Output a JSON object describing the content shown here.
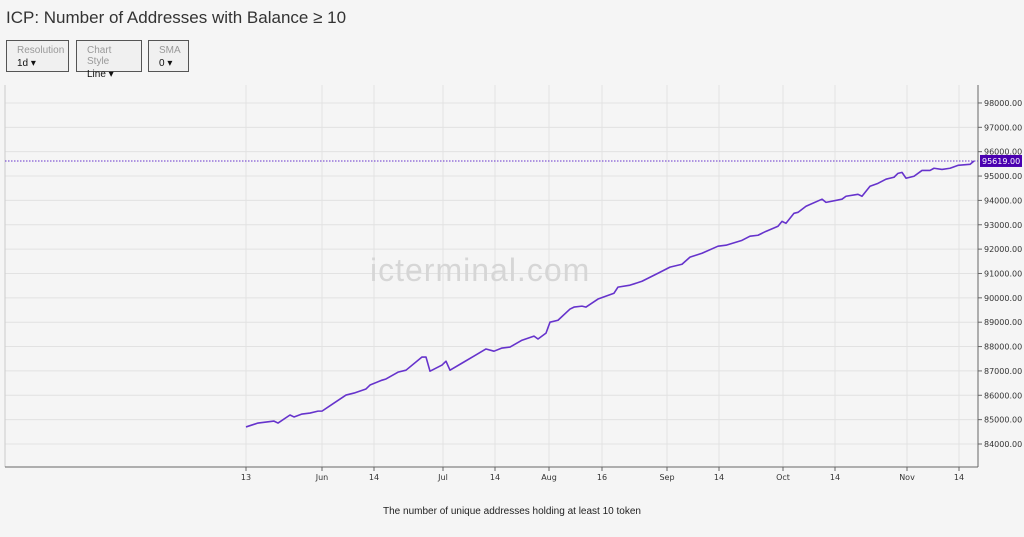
{
  "title": "ICP: Number of Addresses with Balance ≥ 10",
  "controls": [
    {
      "label": "Resolution",
      "value": "1d ▾"
    },
    {
      "label": "Chart Style",
      "value": "Line ▾"
    },
    {
      "label": "SMA",
      "value": "0 ▾"
    }
  ],
  "watermark": "icterminal.com",
  "caption": "The number of unique addresses holding at least 10 token",
  "colors": {
    "line": "#6633cc",
    "label_bg": "#4a00b0",
    "grid": "#e2e2e2"
  },
  "chart_data": {
    "type": "line",
    "title": "ICP: Number of Addresses with Balance ≥ 10",
    "x_unit": "days since May 13 (approx.)",
    "ylim": [
      83000,
      98800
    ],
    "y_ticks": [
      "84000.00",
      "85000.00",
      "86000.00",
      "87000.00",
      "88000.00",
      "89000.00",
      "90000.00",
      "91000.00",
      "92000.00",
      "93000.00",
      "94000.00",
      "95000.00",
      "96000.00",
      "97000.00",
      "98000.00"
    ],
    "x_ticks": [
      {
        "label": "13",
        "day": 0
      },
      {
        "label": "Jun",
        "day": 19
      },
      {
        "label": "14",
        "day": 32
      },
      {
        "label": "Jul",
        "day": 49.25
      },
      {
        "label": "14",
        "day": 62.25
      },
      {
        "label": "Aug",
        "day": 75.75
      },
      {
        "label": "16",
        "day": 89
      },
      {
        "label": "Sep",
        "day": 105.25
      },
      {
        "label": "14",
        "day": 118.25
      },
      {
        "label": "Oct",
        "day": 134.25
      },
      {
        "label": "14",
        "day": 147.25
      },
      {
        "label": "Nov",
        "day": 165.25
      },
      {
        "label": "14",
        "day": 178.25
      }
    ],
    "last_value_label": "95619.00",
    "grid": true,
    "series": [
      {
        "name": "Addresses with Balance ≥ 10",
        "points": [
          [
            0,
            84700
          ],
          [
            3,
            84860
          ],
          [
            7,
            84940
          ],
          [
            8,
            84860
          ],
          [
            11,
            85190
          ],
          [
            12,
            85110
          ],
          [
            14,
            85230
          ],
          [
            16,
            85270
          ],
          [
            18,
            85350
          ],
          [
            19,
            85350
          ],
          [
            22,
            85680
          ],
          [
            25,
            86010
          ],
          [
            27,
            86090
          ],
          [
            30,
            86260
          ],
          [
            31,
            86420
          ],
          [
            34,
            86620
          ],
          [
            35,
            86670
          ],
          [
            38,
            86950
          ],
          [
            40,
            87030
          ],
          [
            44,
            87570
          ],
          [
            45,
            87570
          ],
          [
            46,
            86990
          ],
          [
            49,
            87240
          ],
          [
            50,
            87400
          ],
          [
            51,
            87030
          ],
          [
            54,
            87320
          ],
          [
            57,
            87610
          ],
          [
            60,
            87900
          ],
          [
            62,
            87810
          ],
          [
            64,
            87940
          ],
          [
            66,
            87980
          ],
          [
            69,
            88260
          ],
          [
            72,
            88430
          ],
          [
            73,
            88310
          ],
          [
            75,
            88550
          ],
          [
            76,
            89000
          ],
          [
            78,
            89080
          ],
          [
            81,
            89540
          ],
          [
            82,
            89620
          ],
          [
            84,
            89660
          ],
          [
            85,
            89620
          ],
          [
            88,
            89950
          ],
          [
            92,
            90190
          ],
          [
            93,
            90440
          ],
          [
            96,
            90520
          ],
          [
            99,
            90680
          ],
          [
            103,
            91010
          ],
          [
            106,
            91260
          ],
          [
            109,
            91380
          ],
          [
            111,
            91670
          ],
          [
            114,
            91830
          ],
          [
            118,
            92120
          ],
          [
            120,
            92160
          ],
          [
            124,
            92360
          ],
          [
            126,
            92530
          ],
          [
            128,
            92570
          ],
          [
            130,
            92730
          ],
          [
            133,
            92940
          ],
          [
            134,
            93140
          ],
          [
            135,
            93060
          ],
          [
            137,
            93470
          ],
          [
            138,
            93510
          ],
          [
            140,
            93760
          ],
          [
            144,
            94050
          ],
          [
            145,
            93920
          ],
          [
            149,
            94050
          ],
          [
            150,
            94170
          ],
          [
            153,
            94250
          ],
          [
            154,
            94170
          ],
          [
            156,
            94580
          ],
          [
            158,
            94700
          ],
          [
            160,
            94870
          ],
          [
            162,
            94950
          ],
          [
            163,
            95110
          ],
          [
            164,
            95150
          ],
          [
            165,
            94910
          ],
          [
            167,
            94990
          ],
          [
            169,
            95230
          ],
          [
            171,
            95230
          ],
          [
            172,
            95320
          ],
          [
            174,
            95270
          ],
          [
            176,
            95320
          ],
          [
            178,
            95440
          ],
          [
            181,
            95480
          ],
          [
            182,
            95619
          ]
        ]
      }
    ]
  }
}
